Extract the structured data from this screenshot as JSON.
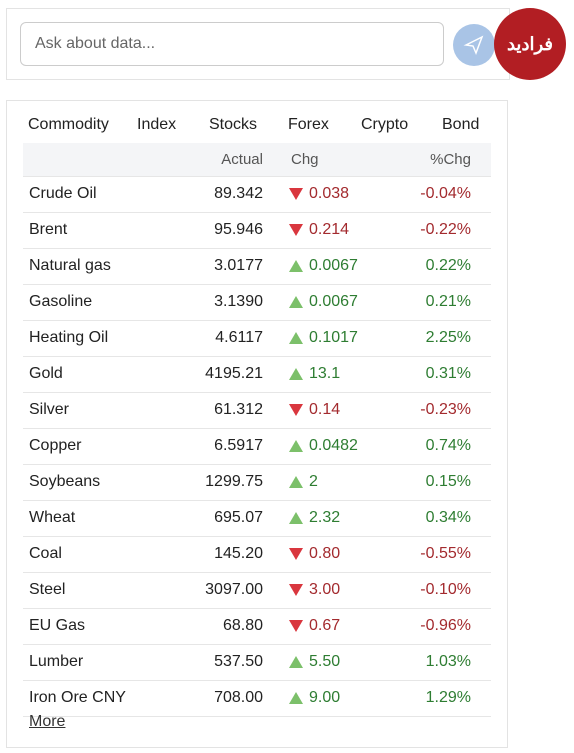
{
  "search": {
    "placeholder": "Ask about data..."
  },
  "watermark": "فرادید",
  "tabs": [
    "Commodity",
    "Index",
    "Stocks",
    "Forex",
    "Crypto",
    "Bond"
  ],
  "active_tab": 0,
  "table": {
    "columns": [
      "",
      "Actual",
      "Chg",
      "%Chg"
    ],
    "rows": [
      {
        "name": "Crude Oil",
        "actual": "89.342",
        "chg": "0.038",
        "pct": "-0.04%",
        "direction": "down"
      },
      {
        "name": "Brent",
        "actual": "95.946",
        "chg": "0.214",
        "pct": "-0.22%",
        "direction": "down"
      },
      {
        "name": "Natural gas",
        "actual": "3.0177",
        "chg": "0.0067",
        "pct": "0.22%",
        "direction": "up"
      },
      {
        "name": "Gasoline",
        "actual": "3.1390",
        "chg": "0.0067",
        "pct": "0.21%",
        "direction": "up"
      },
      {
        "name": "Heating Oil",
        "actual": "4.6117",
        "chg": "0.1017",
        "pct": "2.25%",
        "direction": "up"
      },
      {
        "name": "Gold",
        "actual": "4195.21",
        "chg": "13.1",
        "pct": "0.31%",
        "direction": "up"
      },
      {
        "name": "Silver",
        "actual": "61.312",
        "chg": "0.14",
        "pct": "-0.23%",
        "direction": "down"
      },
      {
        "name": "Copper",
        "actual": "6.5917",
        "chg": "0.0482",
        "pct": "0.74%",
        "direction": "up"
      },
      {
        "name": "Soybeans",
        "actual": "1299.75",
        "chg": "2",
        "pct": "0.15%",
        "direction": "up"
      },
      {
        "name": "Wheat",
        "actual": "695.07",
        "chg": "2.32",
        "pct": "0.34%",
        "direction": "up"
      },
      {
        "name": "Coal",
        "actual": "145.20",
        "chg": "0.80",
        "pct": "-0.55%",
        "direction": "down"
      },
      {
        "name": "Steel",
        "actual": "3097.00",
        "chg": "3.00",
        "pct": "-0.10%",
        "direction": "down"
      },
      {
        "name": "EU Gas",
        "actual": "68.80",
        "chg": "0.67",
        "pct": "-0.96%",
        "direction": "down"
      },
      {
        "name": "Lumber",
        "actual": "537.50",
        "chg": "5.50",
        "pct": "1.03%",
        "direction": "up"
      },
      {
        "name": "Iron Ore CNY",
        "actual": "708.00",
        "chg": "9.00",
        "pct": "1.29%",
        "direction": "up"
      }
    ]
  },
  "more": "More"
}
